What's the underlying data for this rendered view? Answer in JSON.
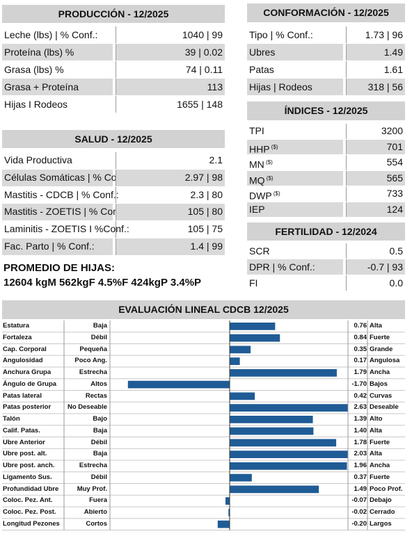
{
  "production": {
    "title": "PRODUCCIÓN - 12/2025",
    "rows": [
      {
        "label": "Leche (lbs) | % Conf.:",
        "value": "1040 | 99"
      },
      {
        "label": "Proteína (lbs) %",
        "value": "39 | 0.02"
      },
      {
        "label": "Grasa (lbs) %",
        "value": "74 | 0.11"
      },
      {
        "label": "Grasa + Proteína",
        "value": "113"
      },
      {
        "label": "Hijas I Rodeos",
        "value": "1655 | 148"
      }
    ]
  },
  "health": {
    "title": "SALUD - 12/2025",
    "rows": [
      {
        "label": "Vida Productiva",
        "value": "2.1"
      },
      {
        "label": "Células Somáticas | % Conf.:",
        "value": "2.97 | 98"
      },
      {
        "label": "Mastitis - CDCB | % Conf.:",
        "value": "2.3 | 80"
      },
      {
        "label": "Mastitis - ZOETIS | % Conf.:",
        "value": "105 | 80"
      },
      {
        "label": "Laminitis - ZOETIS I %Conf.:",
        "value": "105  | 75"
      },
      {
        "label": "Fac. Parto | % Conf.:",
        "value": "1.4  | 99"
      }
    ]
  },
  "daughters": {
    "title": "PROMEDIO DE HIJAS:",
    "text": "12604 kgM 562kgF 4.5%F 424kgP 3.4%P"
  },
  "conformation": {
    "title": "CONFORMACIÓN - 12/2025",
    "rows": [
      {
        "label": "Tipo | % Conf.:",
        "value": "1.73 | 96"
      },
      {
        "label": "Ubres",
        "value": "1.49"
      },
      {
        "label": "Patas",
        "value": "1.61"
      },
      {
        "label": "Hijas | Rodeos",
        "value": "318 | 56"
      }
    ]
  },
  "indices": {
    "title": "ÍNDICES - 12/2025",
    "rows": [
      {
        "label": "TPI",
        "value": "3200"
      },
      {
        "label": "HHP",
        "sup": "($)",
        "value": "701"
      },
      {
        "label": "MN",
        "sup": "($)",
        "value": "554"
      },
      {
        "label": "MQ",
        "sup": "($)",
        "value": "565"
      },
      {
        "label": "DWP",
        "sup": "($)",
        "value": "733"
      },
      {
        "label": "IEP",
        "value": "124"
      }
    ]
  },
  "fertility": {
    "title": "FERTILIDAD - 12/2024",
    "rows": [
      {
        "label": "SCR",
        "value": "0.5"
      },
      {
        "label": "DPR | % Conf.:",
        "value": "-0.7 | 93"
      },
      {
        "label": "FI",
        "value": "0.0"
      }
    ]
  },
  "linear": {
    "title": "EVALUACIÓN LINEAL CDCB 12/2025",
    "traits": [
      {
        "name": "Estatura",
        "low": "Baja",
        "high": "Alta",
        "value": 0.76,
        "value_label": "0.76"
      },
      {
        "name": "Fortaleza",
        "low": "Débil",
        "high": "Fuerte",
        "value": 0.84,
        "value_label": "0.84"
      },
      {
        "name": "Cap. Corporal",
        "low": "Pequeña",
        "high": "Grande",
        "value": 0.35,
        "value_label": "0.35"
      },
      {
        "name": "Angulosidad",
        "low": "Poco Ang.",
        "high": "Angulosa",
        "value": 0.17,
        "value_label": "0.17"
      },
      {
        "name": "Anchura Grupa",
        "low": "Estrecha",
        "high": "Ancha",
        "value": 1.79,
        "value_label": "1.79"
      },
      {
        "name": "Ángulo de Grupa",
        "low": "Altos",
        "high": "Bajos",
        "value": -1.7,
        "value_label": "-1.70"
      },
      {
        "name": "Patas lateral",
        "low": "Rectas",
        "high": "Curvas",
        "value": 0.42,
        "value_label": "0.42"
      },
      {
        "name": "Patas posterior",
        "low": "No Deseable",
        "high": "Deseable",
        "value": 2.63,
        "value_label": "2.63"
      },
      {
        "name": "Talón",
        "low": "Bajo",
        "high": "Alto",
        "value": 1.39,
        "value_label": "1.39"
      },
      {
        "name": "Calif. Patas.",
        "low": "Baja",
        "high": "Alta",
        "value": 1.4,
        "value_label": "1.40"
      },
      {
        "name": "Ubre Anterior",
        "low": "Débil",
        "high": "Fuerte",
        "value": 1.78,
        "value_label": "1.78"
      },
      {
        "name": "Ubre post. alt.",
        "low": "Baja",
        "high": "Alta",
        "value": 2.03,
        "value_label": "2.03"
      },
      {
        "name": "Ubre post. anch.",
        "low": "Estrecha",
        "high": "Ancha",
        "value": 1.96,
        "value_label": "1.96"
      },
      {
        "name": "Ligamento Sus.",
        "low": "Débil",
        "high": "Fuerte",
        "value": 0.37,
        "value_label": "0.37"
      },
      {
        "name": "Profundidad Ubre",
        "low": "Muy Prof.",
        "high": "Poco Prof.",
        "value": 1.49,
        "value_label": "1.49"
      },
      {
        "name": "Coloc. Pez. Ant.",
        "low": "Fuera",
        "high": "Debajo",
        "value": -0.07,
        "value_label": "-0.07"
      },
      {
        "name": "Coloc. Pez. Post.",
        "low": "Abierto",
        "high": "Cerrado",
        "value": -0.02,
        "value_label": "-0.02"
      },
      {
        "name": "Longitud Pezones",
        "low": "Cortos",
        "high": "Largos",
        "value": -0.2,
        "value_label": "-0.20"
      }
    ]
  }
}
